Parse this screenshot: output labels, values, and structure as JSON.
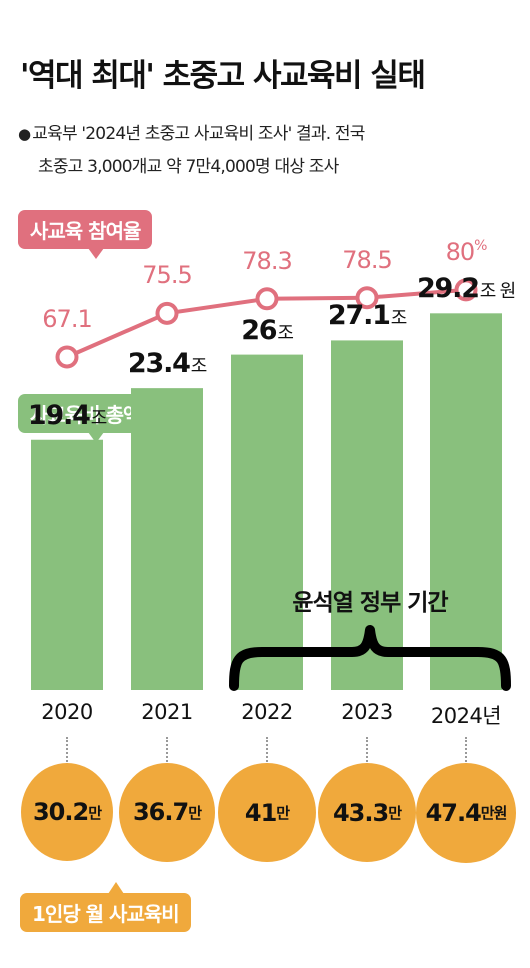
{
  "header": {
    "title": "'역대 최대' 초중고 사교육비 실태",
    "bullet": "●",
    "subtitle_line1": "교육부 '2024년 초중고 사교육비 조사' 결과. 전국",
    "subtitle_line2": "초중고 3,000개교 약 7만4,000명 대상 조사"
  },
  "labels": {
    "participation": "사교육 참여율",
    "total": "사교육비 총액",
    "per_capita": "1인당 월 사교육비",
    "era": "윤석열 정부 기간"
  },
  "colors": {
    "participation": "#e0707e",
    "total": "#89c07d",
    "per_capita": "#f0a93c"
  },
  "chart_data": [
    {
      "type": "line",
      "title": "사교육 참여율",
      "x": [
        "2020",
        "2021",
        "2022",
        "2023",
        "2024"
      ],
      "values": [
        67.1,
        75.5,
        78.3,
        78.5,
        80
      ],
      "value_labels": [
        "67.1",
        "75.5",
        "78.3",
        "78.5",
        "80"
      ],
      "unit_last": "%"
    },
    {
      "type": "bar",
      "title": "사교육비 총액",
      "categories": [
        "2020",
        "2021",
        "2022",
        "2023",
        "2024"
      ],
      "category_labels": [
        "2020",
        "2021",
        "2022",
        "2023",
        "2024년"
      ],
      "values": [
        19.4,
        23.4,
        26,
        27.1,
        29.2
      ],
      "value_labels": [
        "19.4",
        "23.4",
        "26",
        "27.1",
        "29.2"
      ],
      "units": [
        "조",
        "조",
        "조",
        "조",
        "조 원"
      ]
    },
    {
      "type": "bubble",
      "title": "1인당 월 사교육비",
      "categories": [
        "2020",
        "2021",
        "2022",
        "2023",
        "2024"
      ],
      "values": [
        30.2,
        36.7,
        41,
        43.3,
        47.4
      ],
      "value_labels": [
        "30.2",
        "36.7",
        "41",
        "43.3",
        "47.4"
      ],
      "units": [
        "만",
        "만",
        "만",
        "만",
        "만원"
      ]
    }
  ]
}
